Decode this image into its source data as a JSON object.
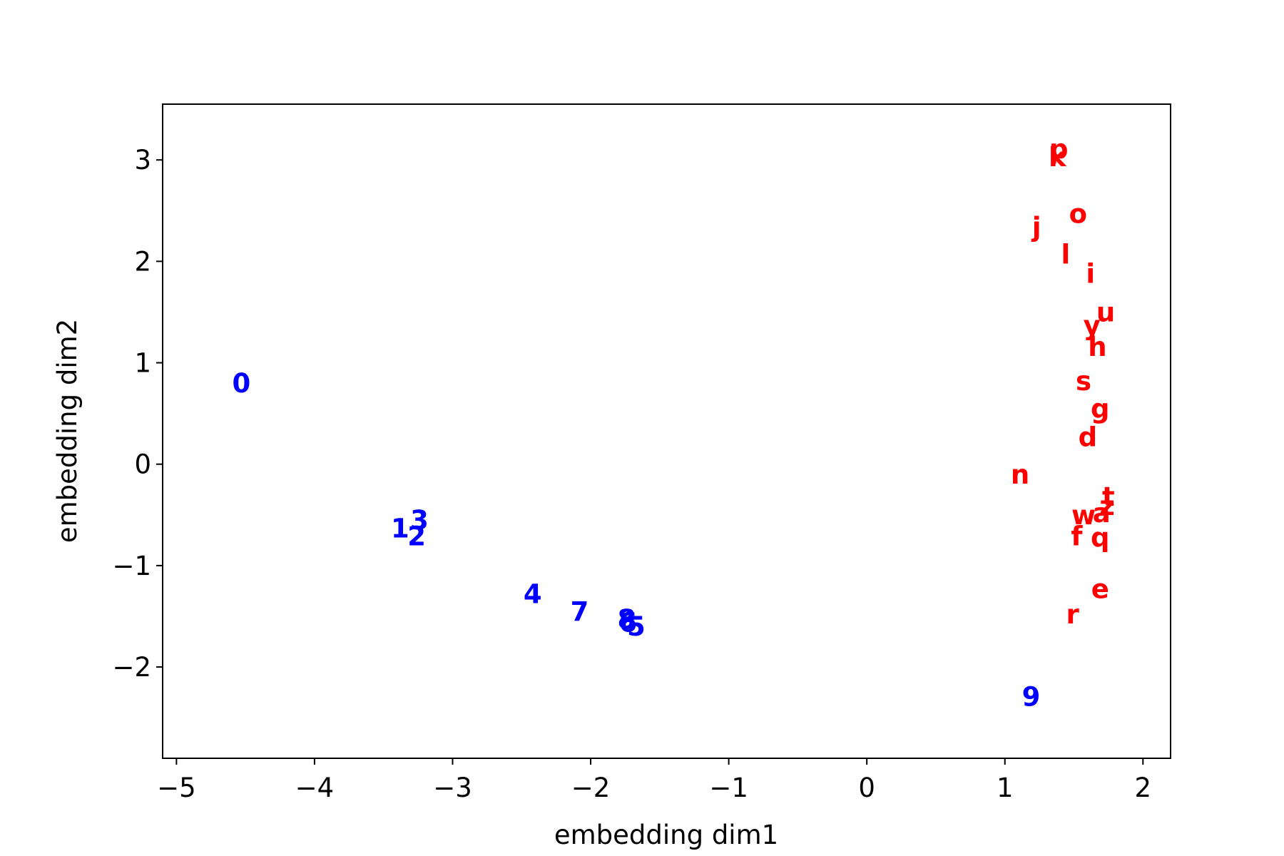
{
  "chart_data": {
    "type": "scatter",
    "xlabel": "embedding dim1",
    "ylabel": "embedding dim2",
    "xlim": [
      -5.1,
      2.2
    ],
    "ylim": [
      -2.9,
      3.55
    ],
    "x_ticks": [
      {
        "value": -5,
        "label": "−5"
      },
      {
        "value": -4,
        "label": "−4"
      },
      {
        "value": -3,
        "label": "−3"
      },
      {
        "value": -2,
        "label": "−2"
      },
      {
        "value": -1,
        "label": "−1"
      },
      {
        "value": 0,
        "label": "0"
      },
      {
        "value": 1,
        "label": "1"
      },
      {
        "value": 2,
        "label": "2"
      }
    ],
    "y_ticks": [
      {
        "value": -2,
        "label": "−2"
      },
      {
        "value": -1,
        "label": "−1"
      },
      {
        "value": 0,
        "label": "0"
      },
      {
        "value": 1,
        "label": "1"
      },
      {
        "value": 2,
        "label": "2"
      },
      {
        "value": 3,
        "label": "3"
      }
    ],
    "grid": false,
    "series": [
      {
        "color": "#0000ff",
        "points": [
          {
            "label": "0",
            "x": -4.53,
            "y": 0.8
          },
          {
            "label": "1",
            "x": -3.38,
            "y": -0.63
          },
          {
            "label": "3",
            "x": -3.24,
            "y": -0.55
          },
          {
            "label": "2",
            "x": -3.26,
            "y": -0.71
          },
          {
            "label": "4",
            "x": -2.42,
            "y": -1.28
          },
          {
            "label": "7",
            "x": -2.08,
            "y": -1.45
          },
          {
            "label": "8",
            "x": -1.74,
            "y": -1.53
          },
          {
            "label": "6",
            "x": -1.73,
            "y": -1.56
          },
          {
            "label": "5",
            "x": -1.67,
            "y": -1.6
          },
          {
            "label": "9",
            "x": 1.19,
            "y": -2.29
          }
        ]
      },
      {
        "color": "#ff0000",
        "points": [
          {
            "label": "p",
            "x": 1.39,
            "y": 3.11
          },
          {
            "label": "k",
            "x": 1.38,
            "y": 3.03
          },
          {
            "label": "o",
            "x": 1.53,
            "y": 2.47
          },
          {
            "label": "j",
            "x": 1.23,
            "y": 2.34
          },
          {
            "label": "l",
            "x": 1.44,
            "y": 2.07
          },
          {
            "label": "i",
            "x": 1.62,
            "y": 1.88
          },
          {
            "label": "u",
            "x": 1.73,
            "y": 1.5
          },
          {
            "label": "y",
            "x": 1.63,
            "y": 1.37
          },
          {
            "label": "h",
            "x": 1.67,
            "y": 1.16
          },
          {
            "label": "s",
            "x": 1.57,
            "y": 0.82
          },
          {
            "label": "g",
            "x": 1.69,
            "y": 0.55
          },
          {
            "label": "d",
            "x": 1.6,
            "y": 0.27
          },
          {
            "label": "n",
            "x": 1.11,
            "y": -0.1
          },
          {
            "label": "t",
            "x": 1.75,
            "y": -0.32
          },
          {
            "label": "z",
            "x": 1.74,
            "y": -0.41
          },
          {
            "label": "w",
            "x": 1.57,
            "y": -0.5
          },
          {
            "label": "a",
            "x": 1.7,
            "y": -0.48
          },
          {
            "label": "f",
            "x": 1.52,
            "y": -0.71
          },
          {
            "label": "q",
            "x": 1.69,
            "y": -0.72
          },
          {
            "label": "e",
            "x": 1.69,
            "y": -1.23
          },
          {
            "label": "r",
            "x": 1.49,
            "y": -1.48
          }
        ]
      }
    ]
  }
}
